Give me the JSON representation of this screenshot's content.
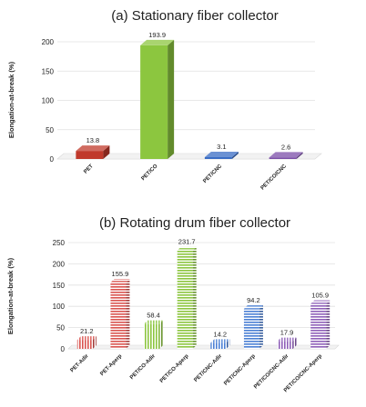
{
  "chart_data": [
    {
      "type": "bar",
      "title": "(a) Stationary fiber collector",
      "ylabel": "Elongation-at-break (%)",
      "ylim": [
        0,
        200
      ],
      "yticks": [
        0,
        50,
        100,
        150,
        200
      ],
      "categories": [
        "PET",
        "PET/CO",
        "PET/CNC",
        "PET/CO/CNC"
      ],
      "values": [
        13.8,
        193.9,
        3.1,
        2.6
      ],
      "value_labels": [
        "13.8",
        "193.9",
        "3.1",
        "2.6"
      ],
      "colors": [
        "#c0392b",
        "#8cc63f",
        "#3a6cc4",
        "#7b4ea8"
      ],
      "bar_style": "solid-3d",
      "grid": true
    },
    {
      "type": "bar",
      "title": "(b) Rotating drum fiber collector",
      "ylabel": "Elongation-at-break (%)",
      "ylim": [
        0,
        250
      ],
      "yticks": [
        0,
        50,
        100,
        150,
        200,
        250
      ],
      "categories": [
        "PET-Adir",
        "PET-Aperp",
        "PET/CO-Adir",
        "PET/CO-Aperp",
        "PET/CNC-Adir",
        "PET/CNC-Aperp",
        "PET/CO/CNC-Adir",
        "PET/CO/CNC-Aperp"
      ],
      "values": [
        21.2,
        155.9,
        58.4,
        231.7,
        14.2,
        94.2,
        17.9,
        105.9
      ],
      "value_labels": [
        "21.2",
        "155.9",
        "58.4",
        "231.7",
        "14.2",
        "94.2",
        "17.9",
        "105.9"
      ],
      "colors": [
        "#d9534f",
        "#d9534f",
        "#8cc63f",
        "#8cc63f",
        "#4a7fd4",
        "#4a7fd4",
        "#8e5fb8",
        "#8e5fb8"
      ],
      "patterns": [
        "vertical-stripes",
        "horizontal-stripes",
        "vertical-stripes",
        "horizontal-stripes",
        "vertical-stripes",
        "horizontal-stripes",
        "vertical-stripes",
        "horizontal-stripes"
      ],
      "bar_style": "striped-3d",
      "grid": true
    }
  ]
}
